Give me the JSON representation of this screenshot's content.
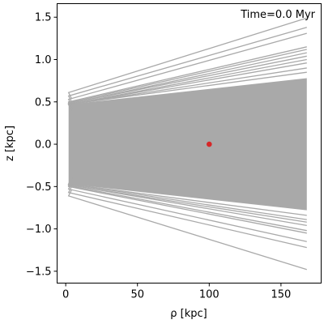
{
  "chart_data": {
    "type": "line",
    "annotation": "Time=0.0 Myr",
    "xlabel": "ρ [kpc]",
    "ylabel": "z [kpc]",
    "xlim": [
      -6,
      178
    ],
    "ylim": [
      -1.64,
      1.66
    ],
    "xticks": [
      0,
      50,
      100,
      150
    ],
    "xtick_labels": [
      "0",
      "50",
      "100",
      "150"
    ],
    "yticks": [
      -1.5,
      -1.0,
      -0.5,
      0.0,
      0.5,
      1.0,
      1.5
    ],
    "ytick_labels": [
      "−1.5",
      "−1.0",
      "−0.5",
      "0.0",
      "0.5",
      "1.0",
      "1.5"
    ],
    "grid": false,
    "colors": {
      "trajectory": "#a9a9a9",
      "marker": "#d62728",
      "axis": "#000000"
    },
    "trajectory_band": {
      "x_start": 2,
      "x_end": 168,
      "upper_start": 0.47,
      "upper_end": 0.78,
      "lower_start": -0.47,
      "lower_end": -0.78
    },
    "outer_trajectories": [
      {
        "x": [
          2,
          168
        ],
        "y": [
          0.61,
          1.49
        ]
      },
      {
        "x": [
          2,
          168
        ],
        "y": [
          0.57,
          1.38
        ]
      },
      {
        "x": [
          2,
          168
        ],
        "y": [
          0.53,
          1.31
        ]
      },
      {
        "x": [
          2,
          168
        ],
        "y": [
          0.5,
          1.15
        ]
      },
      {
        "x": [
          2,
          168
        ],
        "y": [
          0.49,
          1.12
        ]
      },
      {
        "x": [
          2,
          168
        ],
        "y": [
          0.48,
          1.08
        ]
      },
      {
        "x": [
          2,
          168
        ],
        "y": [
          0.48,
          1.04
        ]
      },
      {
        "x": [
          2,
          168
        ],
        "y": [
          0.47,
          1.0
        ]
      },
      {
        "x": [
          2,
          168
        ],
        "y": [
          0.47,
          0.96
        ]
      },
      {
        "x": [
          2,
          168
        ],
        "y": [
          0.47,
          0.9
        ]
      },
      {
        "x": [
          2,
          168
        ],
        "y": [
          0.47,
          0.85
        ]
      },
      {
        "x": [
          2,
          168
        ],
        "y": [
          -0.61,
          -1.48
        ]
      },
      {
        "x": [
          2,
          168
        ],
        "y": [
          -0.57,
          -1.22
        ]
      },
      {
        "x": [
          2,
          168
        ],
        "y": [
          -0.53,
          -1.15
        ]
      },
      {
        "x": [
          2,
          168
        ],
        "y": [
          -0.5,
          -1.05
        ]
      },
      {
        "x": [
          2,
          168
        ],
        "y": [
          -0.49,
          -1.02
        ]
      },
      {
        "x": [
          2,
          168
        ],
        "y": [
          -0.48,
          -0.96
        ]
      },
      {
        "x": [
          2,
          168
        ],
        "y": [
          -0.48,
          -0.92
        ]
      },
      {
        "x": [
          2,
          168
        ],
        "y": [
          -0.47,
          -0.89
        ]
      },
      {
        "x": [
          2,
          168
        ],
        "y": [
          -0.47,
          -0.84
        ]
      }
    ],
    "marker": {
      "x": 100,
      "y": 0.0
    }
  }
}
